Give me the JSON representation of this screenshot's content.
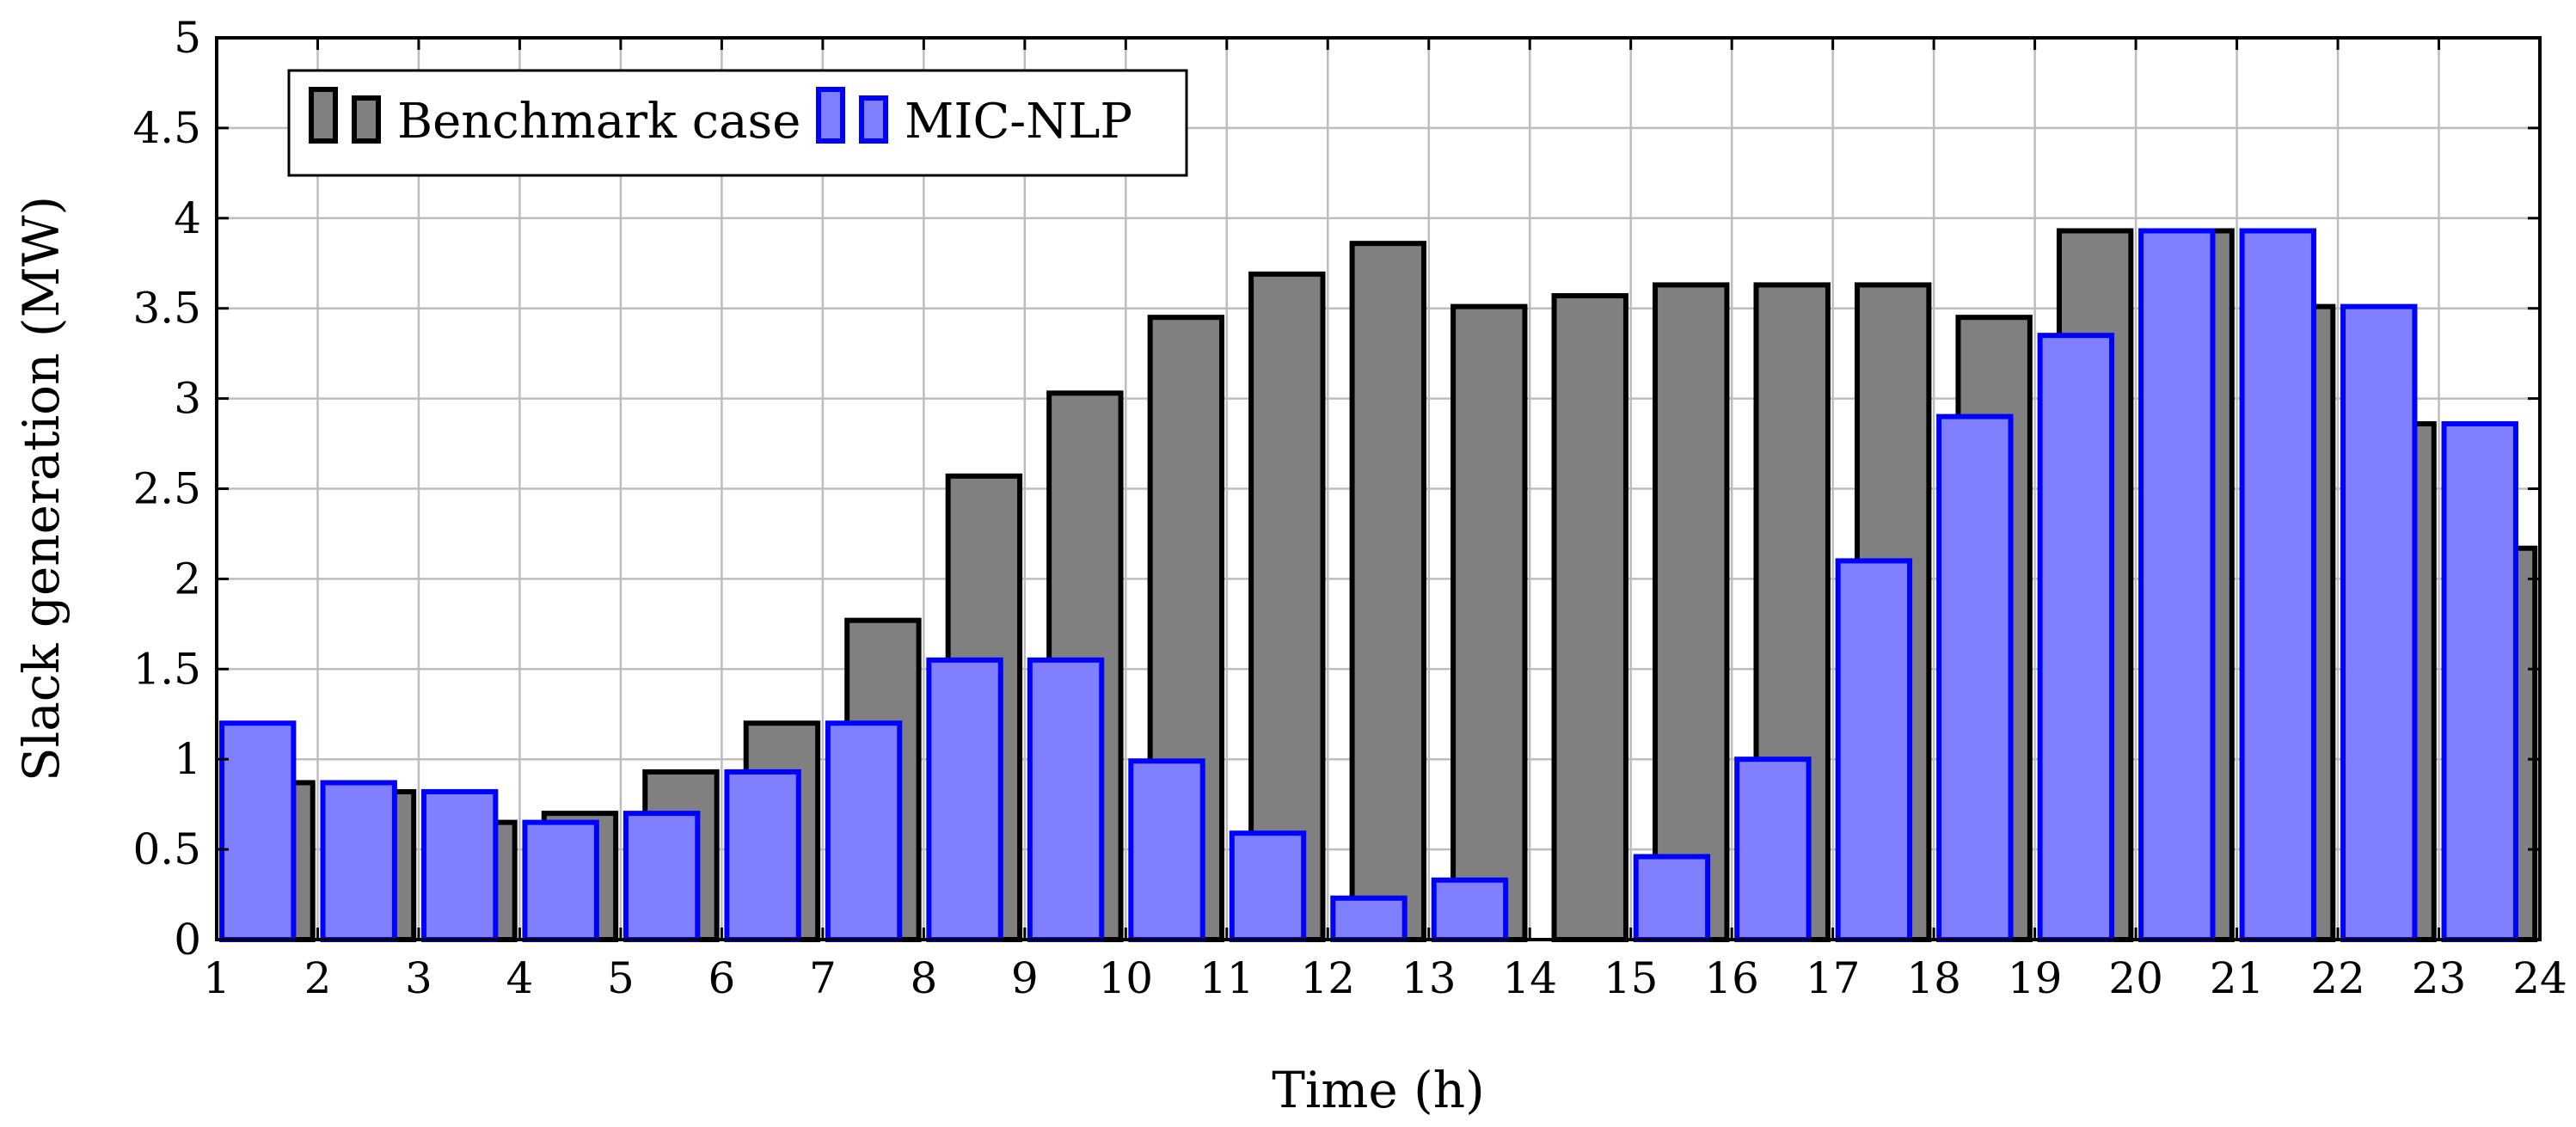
{
  "chart_data": {
    "type": "bar",
    "xlabel": "Time (h)",
    "ylabel": "Slack generation (MW)",
    "xlim": [
      1,
      24
    ],
    "ylim": [
      0,
      5
    ],
    "x_ticks": [
      "1",
      "2",
      "3",
      "4",
      "5",
      "6",
      "7",
      "8",
      "9",
      "10",
      "11",
      "12",
      "13",
      "14",
      "15",
      "16",
      "17",
      "18",
      "19",
      "20",
      "21",
      "22",
      "23",
      "24"
    ],
    "y_ticks": [
      "0",
      "0.5",
      "1",
      "1.5",
      "2",
      "2.5",
      "3",
      "3.5",
      "4",
      "4.5",
      "5"
    ],
    "grid": true,
    "legend_position": "top-left",
    "x": [
      1,
      2,
      3,
      4,
      5,
      6,
      7,
      8,
      9,
      10,
      11,
      12,
      13,
      14,
      15,
      16,
      17,
      18,
      19,
      20,
      21,
      22,
      23
    ],
    "series": [
      {
        "name": "Benchmark case",
        "color": "#808080",
        "edge_color": "#000000",
        "values": [
          0.87,
          0.82,
          0.65,
          0.7,
          0.93,
          1.2,
          1.77,
          2.57,
          3.03,
          3.45,
          3.69,
          3.86,
          3.51,
          3.57,
          3.63,
          3.63,
          3.63,
          3.45,
          3.93,
          3.93,
          3.51,
          2.86,
          2.17
        ]
      },
      {
        "name": "MIC-NLP",
        "color": "#8080ff",
        "edge_color": "#0000ff",
        "values": [
          1.2,
          0.87,
          0.82,
          0.65,
          0.7,
          0.93,
          1.2,
          1.55,
          1.55,
          0.99,
          0.59,
          0.23,
          0.33,
          0.0,
          0.46,
          1.0,
          2.1,
          2.9,
          3.35,
          3.93,
          3.93,
          3.51,
          2.86
        ]
      }
    ]
  }
}
